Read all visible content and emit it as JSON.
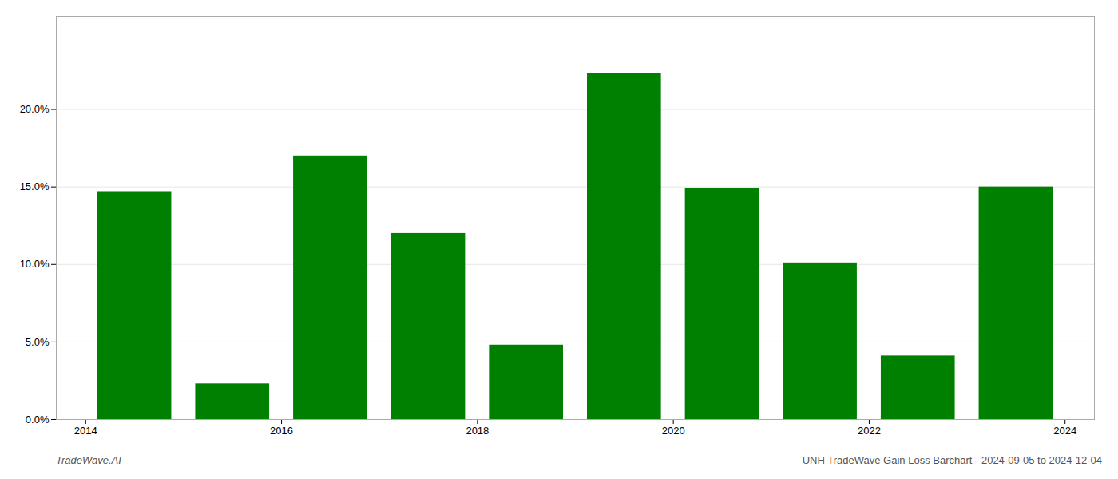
{
  "chart_data": {
    "type": "bar",
    "x": [
      2014,
      2015,
      2016,
      2017,
      2018,
      2019,
      2020,
      2021,
      2022,
      2023
    ],
    "values": [
      0.147,
      0.023,
      0.17,
      0.12,
      0.048,
      0.223,
      0.149,
      0.101,
      0.041,
      0.15
    ],
    "color": "#008000",
    "xlim": [
      2013.7,
      2024.3
    ],
    "xticks": [
      2014,
      2016,
      2018,
      2020,
      2022,
      2024
    ],
    "ylim": [
      0,
      0.26
    ],
    "yticks": [
      {
        "value": 0.0,
        "label": "0.0%"
      },
      {
        "value": 0.05,
        "label": "5.0%"
      },
      {
        "value": 0.1,
        "label": "10.0%"
      },
      {
        "value": 0.15,
        "label": "15.0%"
      },
      {
        "value": 0.2,
        "label": "20.0%"
      }
    ],
    "grid": true,
    "annotations": [
      "TradeWave.AI",
      "UNH TradeWave Gain Loss Barchart - 2024-09-05 to 2024-12-04"
    ]
  }
}
